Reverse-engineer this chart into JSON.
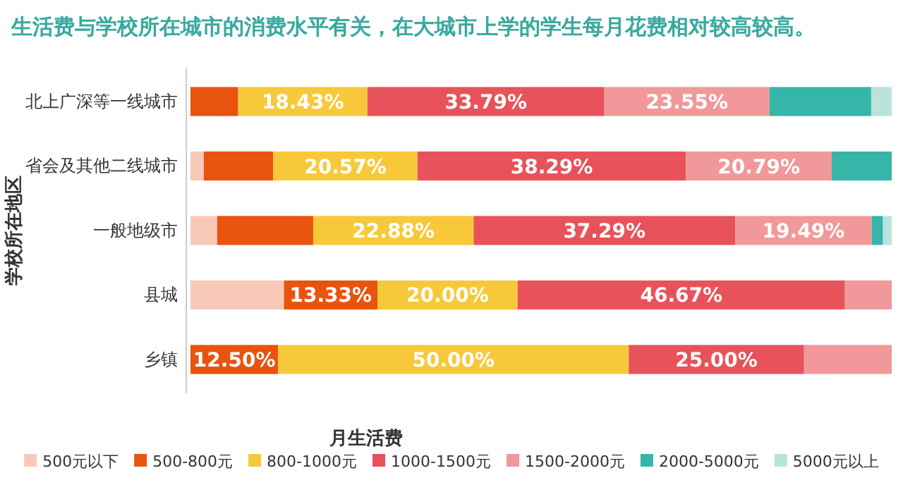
{
  "chart_data": {
    "type": "bar",
    "orientation": "horizontal",
    "stacked": true,
    "title": "生活费与学校所在城市的消费水平有关，在大城市上学的学生每月花费相对较高较高。",
    "xlabel": "月生活费",
    "ylabel": "学校所在地区",
    "categories": [
      "北上广深等一线城市",
      "省会及其他二线城市",
      "一般地级市",
      "县城",
      "乡镇"
    ],
    "xlim": [
      0,
      100
    ],
    "tick_labels": "y",
    "legend": "bottom",
    "series": [
      {
        "name": "500元以下",
        "color": "#f9c9b8",
        "values": [
          0,
          1.9,
          3.8,
          13.33,
          0
        ],
        "value_labels": [
          null,
          null,
          null,
          null,
          null
        ]
      },
      {
        "name": "500-800元",
        "color": "#e8540e",
        "values": [
          6.8,
          9.9,
          13.7,
          13.33,
          12.5
        ],
        "value_labels": [
          null,
          null,
          null,
          "13.33%",
          "12.50%"
        ]
      },
      {
        "name": "800-1000元",
        "color": "#f7c93a",
        "values": [
          18.43,
          20.57,
          22.88,
          20,
          50
        ],
        "value_labels": [
          "18.43%",
          "20.57%",
          "22.88%",
          "20.00%",
          "50.00%"
        ]
      },
      {
        "name": "1000-1500元",
        "color": "#e8525a",
        "values": [
          33.79,
          38.29,
          37.29,
          46.67,
          25
        ],
        "value_labels": [
          "33.79%",
          "38.29%",
          "37.29%",
          "46.67%",
          "25.00%"
        ]
      },
      {
        "name": "1500-2000元",
        "color": "#f0989a",
        "values": [
          23.55,
          20.79,
          19.49,
          6.67,
          12.5
        ],
        "value_labels": [
          "23.55%",
          "20.79%",
          "19.49%",
          null,
          null
        ]
      },
      {
        "name": "2000-5000元",
        "color": "#35b6a9",
        "values": [
          14.5,
          8.55,
          1.6,
          0,
          0
        ],
        "value_labels": [
          null,
          null,
          null,
          null,
          null
        ]
      },
      {
        "name": "5000元以上",
        "color": "#b9e3dc",
        "values": [
          2.93,
          0,
          1.24,
          0,
          0
        ],
        "value_labels": [
          null,
          null,
          null,
          null,
          null
        ]
      }
    ]
  }
}
